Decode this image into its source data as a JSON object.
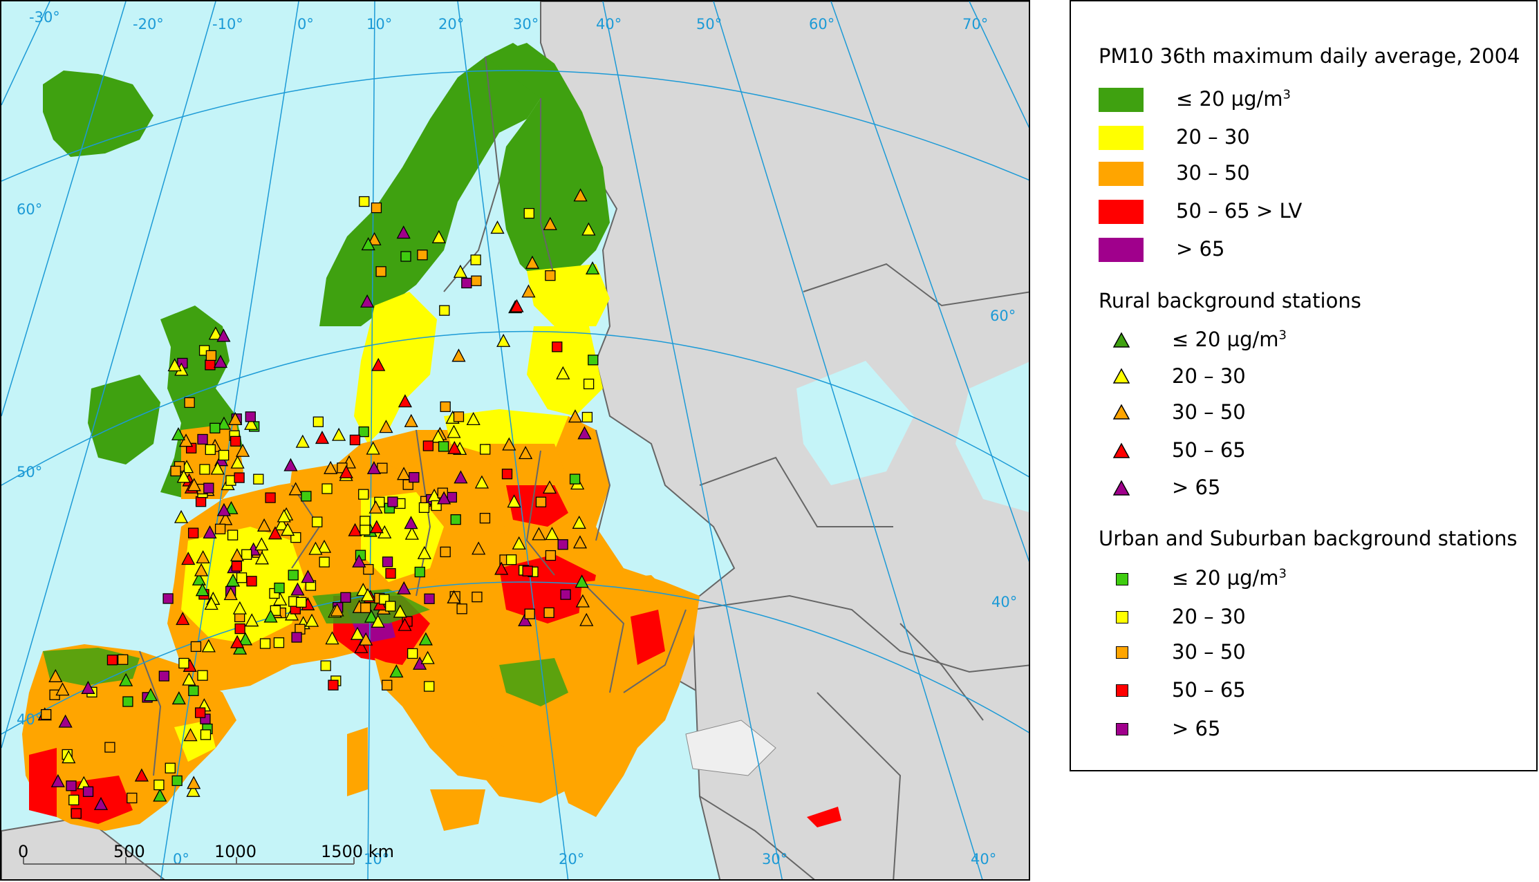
{
  "legend": {
    "title": "PM10 36th maximum daily average, 2004",
    "surface_classes": [
      {
        "label": "≤ 20 µg/m",
        "sup": "3",
        "color": "#3fa110"
      },
      {
        "label": "20 – 30",
        "sup": "",
        "color": "#ffff00"
      },
      {
        "label": "30 – 50",
        "sup": "",
        "color": "#ffa500"
      },
      {
        "label": "50 – 65 > LV",
        "sup": "",
        "color": "#ff0000"
      },
      {
        "label": "> 65",
        "sup": "",
        "color": "#a0008c"
      }
    ],
    "rural_title": "Rural background stations",
    "rural_classes": [
      {
        "label": "≤ 20 µg/m",
        "sup": "3",
        "color": "#3fa110"
      },
      {
        "label": "20 – 30",
        "sup": "",
        "color": "#ffff00"
      },
      {
        "label": "30 – 50",
        "sup": "",
        "color": "#ffa500"
      },
      {
        "label": "50 – 65",
        "sup": "",
        "color": "#ff0000"
      },
      {
        "label": "> 65",
        "sup": "",
        "color": "#a0008c"
      }
    ],
    "urban_title": "Urban and Suburban background stations",
    "urban_classes": [
      {
        "label": "≤ 20 µg/m",
        "sup": "3",
        "color": "#3fcc10"
      },
      {
        "label": "20 – 30",
        "sup": "",
        "color": "#ffff00"
      },
      {
        "label": "30 – 50",
        "sup": "",
        "color": "#ffa500"
      },
      {
        "label": "50 – 65",
        "sup": "",
        "color": "#ff0000"
      },
      {
        "label": "> 65",
        "sup": "",
        "color": "#a0008c"
      }
    ]
  },
  "map": {
    "longitude_labels": [
      "-30°",
      "-20°",
      "-10°",
      "0°",
      "10°",
      "20°",
      "30°",
      "40°",
      "50°",
      "60°",
      "70°"
    ],
    "latitude_labels": [
      "60°",
      "50°",
      "40°"
    ],
    "bottom_labels": [
      "0°",
      "10°",
      "20°",
      "30°",
      "40°"
    ],
    "right_labels": [
      "60°",
      "40°"
    ],
    "scale_bar": {
      "ticks": [
        "0",
        "500",
        "1000",
        "1500 km"
      ]
    },
    "colors": {
      "sea": "#c5f4f8",
      "non_eu_land": "#d8d8d8",
      "graticule": "#1c9ad6",
      "border": "#666666"
    }
  }
}
